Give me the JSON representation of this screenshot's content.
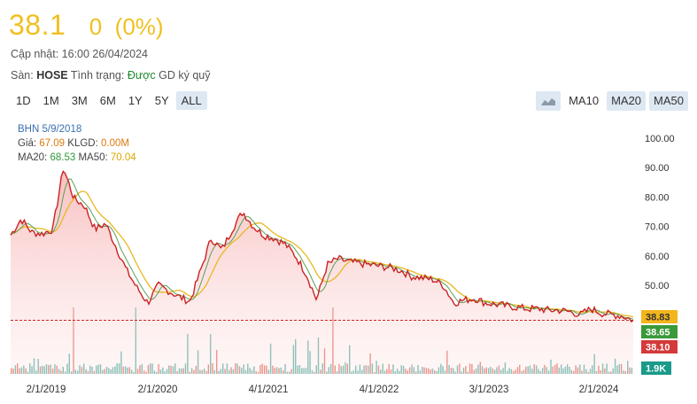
{
  "quote": {
    "price": "38.1",
    "change": "0",
    "change_pct": "(0%)",
    "updated_label": "Cập nhật: 16:00 26/04/2024",
    "exchange_prefix": "Sàn:",
    "exchange": "HOSE",
    "status_label": "Tình trạng:",
    "status_value": "Được",
    "status_suffix": "GD ký quỹ"
  },
  "ranges": [
    "1D",
    "1M",
    "3M",
    "6M",
    "1Y",
    "5Y",
    "ALL"
  ],
  "active_range": "ALL",
  "ma_buttons": [
    "MA10",
    "MA20",
    "MA50"
  ],
  "tooltip": {
    "date": "BHN 5/9/2018",
    "price_label": "Giá:",
    "price": "67.09",
    "vol_label": "KLGD:",
    "vol": "0.00M",
    "ma20_label": "MA20:",
    "ma20": "68.53",
    "ma50_label": "MA50:",
    "ma50": "70.04"
  },
  "colors": {
    "price_line": "#cc2222",
    "ma20": "#5aa05a",
    "ma50": "#e8b820",
    "area_top": "#f7b5b5",
    "tag_ma50": "#f3b51c",
    "tag_ma20": "#3a9a3a",
    "tag_price": "#d43a3a",
    "tag_volume": "#1a9a8a"
  },
  "chart_data": {
    "type": "line",
    "y_ticks": [
      "100.00",
      "90.00",
      "80.00",
      "70.00",
      "60.00",
      "50.00"
    ],
    "x_ticks": [
      "2/1/2019",
      "2/1/2020",
      "4/1/2021",
      "4/1/2022",
      "3/1/2023",
      "2/1/2024"
    ],
    "ylim": [
      35,
      105
    ],
    "x": [
      "9/2018",
      "11/2018",
      "1/2019",
      "3/2019",
      "5/2019",
      "7/2019",
      "9/2019",
      "11/2019",
      "1/2020",
      "2/2020",
      "3/2020",
      "4/2020",
      "5/2020",
      "6/2020",
      "7/2020",
      "8/2020",
      "9/2020",
      "10/2020",
      "11/2020",
      "12/2020",
      "1/2021",
      "2/2021",
      "3/2021",
      "4/2021",
      "5/2021",
      "6/2021",
      "7/2021",
      "8/2021",
      "9/2021",
      "10/2021",
      "11/2021",
      "12/2021",
      "1/2022",
      "2/2022",
      "3/2022",
      "4/2022",
      "5/2022",
      "6/2022",
      "7/2022",
      "8/2022",
      "9/2022",
      "10/2022",
      "11/2022",
      "12/2022",
      "1/2023",
      "2/2023",
      "3/2023",
      "4/2023",
      "5/2023",
      "6/2023",
      "7/2023",
      "8/2023",
      "9/2023",
      "10/2023",
      "11/2023",
      "12/2023",
      "1/2024",
      "2/2024",
      "3/2024",
      "4/2024"
    ],
    "series": [
      {
        "values": [
          67.1,
          72.5,
          68.0,
          67.5,
          69.0,
          90.0,
          79.5,
          77.0,
          69.0,
          71.0,
          63.0,
          55.0,
          49.0,
          44.0,
          50.0,
          48.0,
          46.0,
          44.5,
          55.0,
          66.0,
          62.0,
          69.0,
          75.0,
          70.0,
          67.0,
          66.0,
          64.0,
          60.0,
          54.0,
          45.0,
          57.0,
          59.0,
          58.0,
          57.5,
          57.0,
          56.5,
          56.0,
          55.0,
          53.0,
          52.5,
          52.0,
          50.0,
          44.0,
          45.0,
          45.5,
          44.0,
          43.5,
          43.0,
          42.5,
          42.0,
          42.0,
          41.5,
          41.5,
          41.0,
          40.0,
          42.0,
          40.5,
          40.0,
          39.5,
          38.1
        ]
      }
    ],
    "current_tags": {
      "ma50": "38.83",
      "ma20": "38.65",
      "price": "38.10",
      "volume": "1.9K"
    }
  }
}
